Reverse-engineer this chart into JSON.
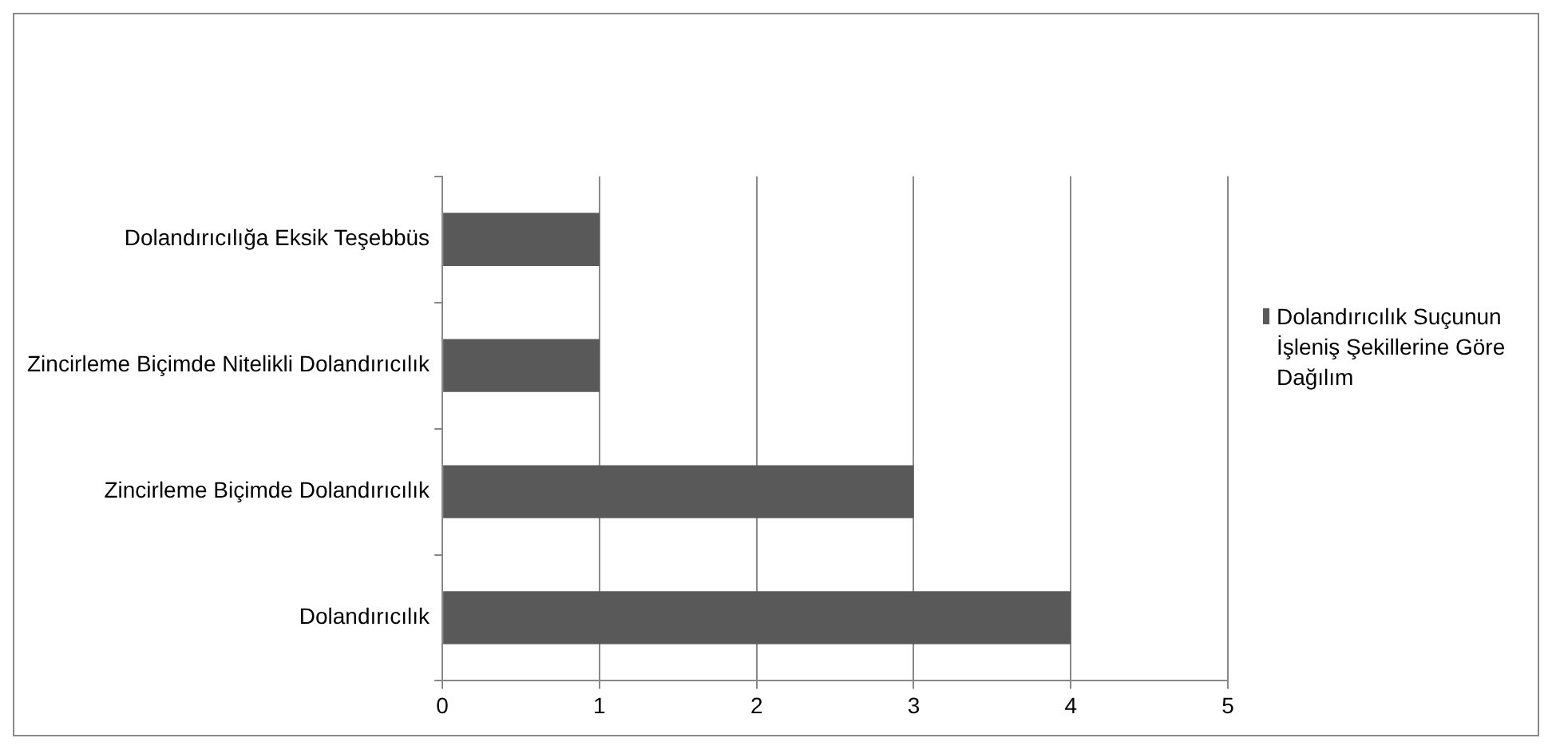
{
  "chart_data": {
    "type": "bar",
    "orientation": "horizontal",
    "categories": [
      "Dolandırıcılığa Eksik Teşebbüs",
      "Zincirleme Biçimde Nitelikli Dolandırıcılık",
      "Zincirleme Biçimde Dolandırıcılık",
      "Dolandırıcılık"
    ],
    "series": [
      {
        "name": "Dolandırıcılık Suçunun İşleniş Şekillerine Göre Dağılım",
        "color": "#595959",
        "values": [
          1,
          1,
          3,
          4
        ]
      }
    ],
    "xlim": [
      0,
      5
    ],
    "xticks": [
      0,
      1,
      2,
      3,
      4,
      5
    ],
    "grid": "x",
    "legend": "right"
  }
}
